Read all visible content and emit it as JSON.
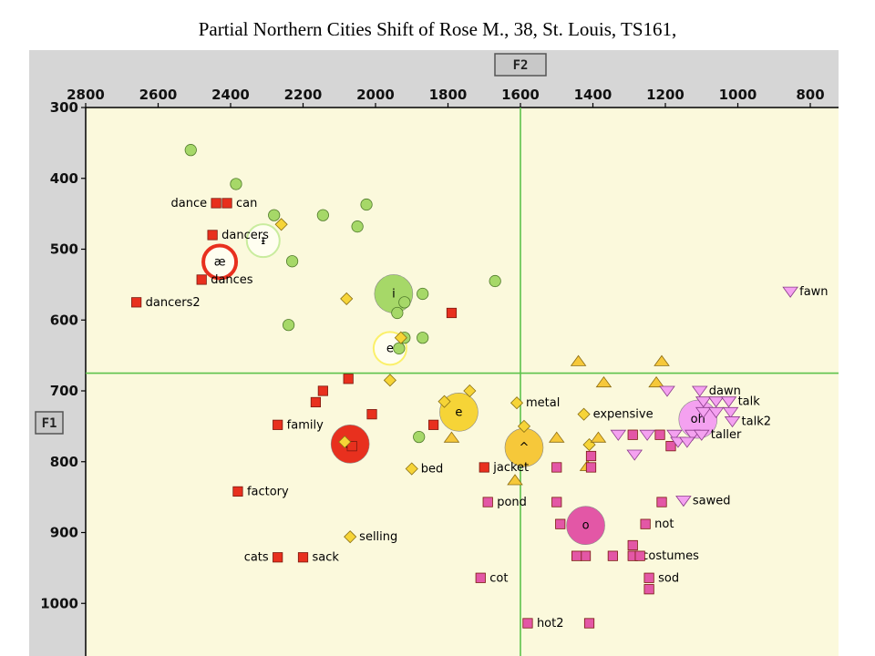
{
  "page": {
    "title": "Partial Northern Cities Shift of Rose M., 38, St. Louis, TS161,"
  },
  "chart_data": {
    "type": "scatter",
    "x_axis": {
      "label": "F2",
      "range": [
        2800,
        720
      ],
      "reversed": true,
      "ticks": [
        2800,
        2600,
        2400,
        2200,
        2000,
        1800,
        1600,
        1400,
        1200,
        1000,
        800
      ]
    },
    "y_axis": {
      "label": "F1",
      "range": [
        300,
        1065
      ],
      "reversed": true,
      "ticks": [
        300,
        400,
        500,
        600,
        700,
        800,
        900,
        1000
      ]
    },
    "reference_lines": {
      "f2": 1600,
      "f1": 675
    },
    "colors": {
      "plot_bg": "#fbf9dc",
      "frame": "#d6d6d6",
      "ref_line": "#5cc24a",
      "ae": "#e8301e",
      "i": "#a6d868",
      "e": "#f6d437",
      "wedge": "#f6c83a",
      "o": "#e357a6",
      "oh": "#f4a1f0"
    },
    "series": [
      {
        "vowel": "ae",
        "marker": "square",
        "color": "#e8301e",
        "points": [
          {
            "f2": 2440,
            "f1": 435,
            "word": "dance"
          },
          {
            "f2": 2410,
            "f1": 435,
            "word": "can"
          },
          {
            "f2": 2450,
            "f1": 480,
            "word": "dancers"
          },
          {
            "f2": 2480,
            "f1": 543,
            "word": "dances"
          },
          {
            "f2": 2660,
            "f1": 575,
            "word": "dancers2"
          },
          {
            "f2": 1790,
            "f1": 590
          },
          {
            "f2": 2075,
            "f1": 683
          },
          {
            "f2": 2145,
            "f1": 700
          },
          {
            "f2": 2165,
            "f1": 716
          },
          {
            "f2": 2270,
            "f1": 748,
            "word": "family"
          },
          {
            "f2": 2010,
            "f1": 733
          },
          {
            "f2": 1840,
            "f1": 748
          },
          {
            "f2": 2065,
            "f1": 778
          },
          {
            "f2": 2380,
            "f1": 842,
            "word": "factory"
          },
          {
            "f2": 1700,
            "f1": 808,
            "word": "jacket"
          },
          {
            "f2": 2200,
            "f1": 935,
            "word": "sack"
          },
          {
            "f2": 2270,
            "f1": 935,
            "word": "cats"
          }
        ]
      },
      {
        "vowel": "i",
        "marker": "circle",
        "color": "#a6d868",
        "points": [
          {
            "f2": 2510,
            "f1": 360
          },
          {
            "f2": 2385,
            "f1": 408
          },
          {
            "f2": 2280,
            "f1": 452
          },
          {
            "f2": 2145,
            "f1": 452
          },
          {
            "f2": 2025,
            "f1": 437
          },
          {
            "f2": 2050,
            "f1": 468
          },
          {
            "f2": 2230,
            "f1": 517
          },
          {
            "f2": 1670,
            "f1": 545
          },
          {
            "f2": 1870,
            "f1": 563
          },
          {
            "f2": 1920,
            "f1": 575
          },
          {
            "f2": 1940,
            "f1": 590
          },
          {
            "f2": 1920,
            "f1": 625
          },
          {
            "f2": 1935,
            "f1": 640
          },
          {
            "f2": 1870,
            "f1": 625
          },
          {
            "f2": 2240,
            "f1": 607
          },
          {
            "f2": 1880,
            "f1": 765
          }
        ]
      },
      {
        "vowel": "e",
        "marker": "diamond",
        "color": "#f6d437",
        "points": [
          {
            "f2": 2260,
            "f1": 465
          },
          {
            "f2": 2080,
            "f1": 570
          },
          {
            "f2": 1930,
            "f1": 625
          },
          {
            "f2": 1960,
            "f1": 685
          },
          {
            "f2": 1810,
            "f1": 715
          },
          {
            "f2": 1740,
            "f1": 700
          },
          {
            "f2": 1610,
            "f1": 717,
            "word": "metal"
          },
          {
            "f2": 1425,
            "f1": 733,
            "word": "expensive"
          },
          {
            "f2": 1900,
            "f1": 810,
            "word": "bed"
          },
          {
            "f2": 2070,
            "f1": 906,
            "word": "selling"
          },
          {
            "f2": 1590,
            "f1": 750
          },
          {
            "f2": 1410,
            "f1": 776
          },
          {
            "f2": 2085,
            "f1": 772
          }
        ]
      },
      {
        "vowel": "wedge",
        "marker": "triangle-up",
        "color": "#f6c83a",
        "points": [
          {
            "f2": 1440,
            "f1": 658
          },
          {
            "f2": 1210,
            "f1": 658
          },
          {
            "f2": 1370,
            "f1": 688
          },
          {
            "f2": 1225,
            "f1": 688
          },
          {
            "f2": 1385,
            "f1": 766
          },
          {
            "f2": 1500,
            "f1": 766
          },
          {
            "f2": 1415,
            "f1": 806
          },
          {
            "f2": 1615,
            "f1": 826
          },
          {
            "f2": 1790,
            "f1": 766
          }
        ]
      },
      {
        "vowel": "o",
        "marker": "square",
        "color": "#e357a6",
        "points": [
          {
            "f2": 1290,
            "f1": 762
          },
          {
            "f2": 1215,
            "f1": 762
          },
          {
            "f2": 1405,
            "f1": 792
          },
          {
            "f2": 1185,
            "f1": 778
          },
          {
            "f2": 1500,
            "f1": 808
          },
          {
            "f2": 1405,
            "f1": 808
          },
          {
            "f2": 1690,
            "f1": 857,
            "word": "pond"
          },
          {
            "f2": 1500,
            "f1": 857
          },
          {
            "f2": 1490,
            "f1": 888
          },
          {
            "f2": 1255,
            "f1": 888,
            "word": "not"
          },
          {
            "f2": 1210,
            "f1": 857
          },
          {
            "f2": 1290,
            "f1": 918
          },
          {
            "f2": 1290,
            "f1": 933,
            "word": "costumes"
          },
          {
            "f2": 1420,
            "f1": 933
          },
          {
            "f2": 1445,
            "f1": 933
          },
          {
            "f2": 1345,
            "f1": 933
          },
          {
            "f2": 1270,
            "f1": 933
          },
          {
            "f2": 1245,
            "f1": 964,
            "word": "sod"
          },
          {
            "f2": 1245,
            "f1": 980
          },
          {
            "f2": 1710,
            "f1": 964,
            "word": "cot"
          },
          {
            "f2": 1580,
            "f1": 1028,
            "word": "hot2"
          },
          {
            "f2": 1410,
            "f1": 1028
          }
        ]
      },
      {
        "vowel": "oh",
        "marker": "triangle-down",
        "color": "#f4a1f0",
        "points": [
          {
            "f2": 855,
            "f1": 560,
            "word": "fawn"
          },
          {
            "f2": 1195,
            "f1": 700
          },
          {
            "f2": 1105,
            "f1": 700,
            "word": "dawn"
          },
          {
            "f2": 1095,
            "f1": 715
          },
          {
            "f2": 1060,
            "f1": 715
          },
          {
            "f2": 1025,
            "f1": 715,
            "word": "talk"
          },
          {
            "f2": 1095,
            "f1": 730
          },
          {
            "f2": 1060,
            "f1": 730
          },
          {
            "f2": 1020,
            "f1": 730
          },
          {
            "f2": 1015,
            "f1": 743,
            "word": "talk2"
          },
          {
            "f2": 1330,
            "f1": 762
          },
          {
            "f2": 1250,
            "f1": 762
          },
          {
            "f2": 1175,
            "f1": 762
          },
          {
            "f2": 1125,
            "f1": 762
          },
          {
            "f2": 1100,
            "f1": 762,
            "word": "taller"
          },
          {
            "f2": 1165,
            "f1": 772
          },
          {
            "f2": 1140,
            "f1": 772
          },
          {
            "f2": 1285,
            "f1": 790
          },
          {
            "f2": 1150,
            "f1": 855,
            "word": "sawed"
          }
        ]
      }
    ],
    "vowel_means": [
      {
        "symbol": "æ",
        "f2": 2430,
        "f1": 518,
        "color": "#e8301e",
        "style": "ring"
      },
      {
        "symbol": "ᵻ",
        "f2": 2310,
        "f1": 488,
        "color": "#c9ec9e",
        "style": "ring"
      },
      {
        "symbol": "i",
        "f2": 1950,
        "f1": 563,
        "color": "#a6d868",
        "style": "filled"
      },
      {
        "symbol": "e",
        "f2": 1960,
        "f1": 640,
        "color": "#fbf06a",
        "style": "ring"
      },
      {
        "symbol": "e",
        "f2": 1770,
        "f1": 730,
        "color": "#f6d437",
        "style": "filled"
      },
      {
        "symbol": "æ",
        "f2": 2070,
        "f1": 775,
        "color": "#e8301e",
        "style": "filled"
      },
      {
        "symbol": "^",
        "f2": 1590,
        "f1": 780,
        "color": "#f6c83a",
        "style": "filled"
      },
      {
        "symbol": "o",
        "f2": 1420,
        "f1": 890,
        "color": "#e357a6",
        "style": "filled"
      },
      {
        "symbol": "oh",
        "f2": 1110,
        "f1": 740,
        "color": "#f4a1f0",
        "style": "filled"
      }
    ]
  }
}
